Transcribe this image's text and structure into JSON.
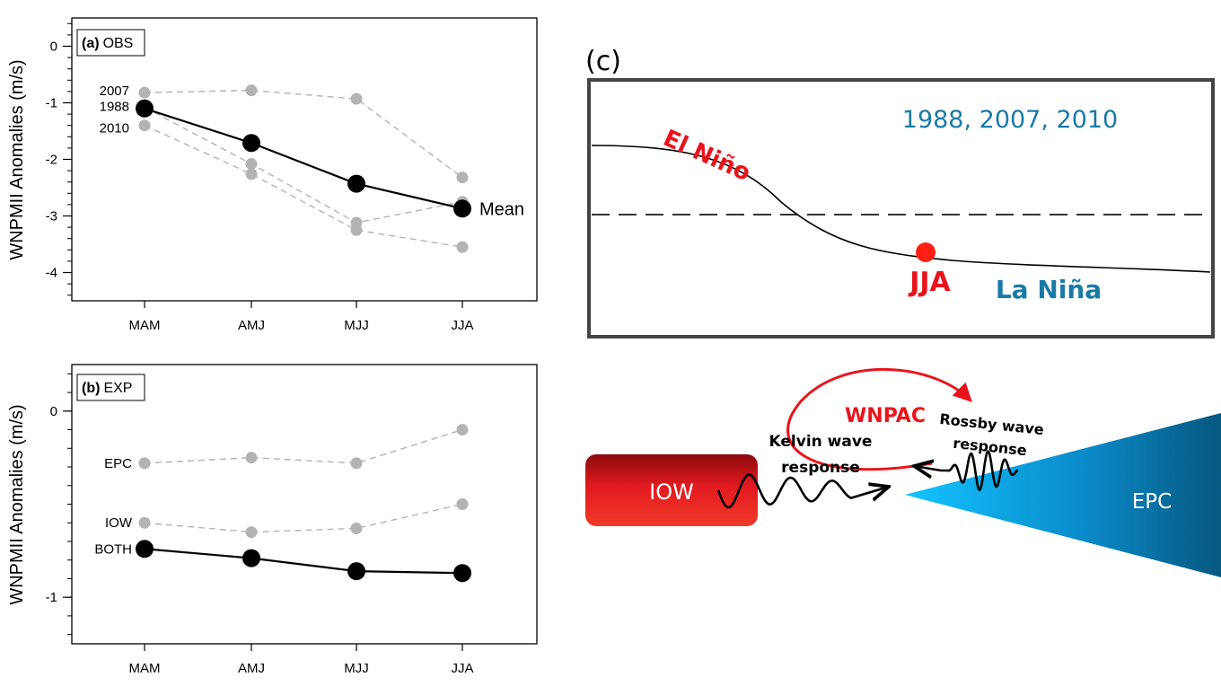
{
  "chart_data": [
    {
      "id": "a",
      "type": "line",
      "panel_tag": "(a)",
      "panel_name": "OBS",
      "ylabel": "WNPMII Anomalies (m/s)",
      "categories": [
        "MAM",
        "AMJ",
        "MJJ",
        "JJA"
      ],
      "ylim": [
        -4.5,
        0.5
      ],
      "yticks": [
        0,
        -1,
        -2,
        -3,
        -4
      ],
      "series": [
        {
          "name": "2007",
          "style": "gray-dashed",
          "values": [
            -0.82,
            -0.78,
            -0.93,
            -2.32
          ]
        },
        {
          "name": "1988",
          "style": "gray-dashed",
          "values": [
            -1.08,
            -2.08,
            -3.12,
            -2.75
          ]
        },
        {
          "name": "2010",
          "style": "gray-dashed",
          "values": [
            -1.4,
            -2.26,
            -3.25,
            -3.55
          ]
        },
        {
          "name": "Mean",
          "style": "black-solid",
          "values": [
            -1.1,
            -1.71,
            -2.43,
            -2.87
          ]
        }
      ],
      "left_labels": [
        "2007",
        "1988",
        "2010"
      ],
      "right_label": "Mean"
    },
    {
      "id": "b",
      "type": "line",
      "panel_tag": "(b)",
      "panel_name": "EXP",
      "ylabel": "WNPMII Anomalies (m/s)",
      "categories": [
        "MAM",
        "AMJ",
        "MJJ",
        "JJA"
      ],
      "ylim": [
        -1.25,
        0.25
      ],
      "yticks": [
        0,
        -1
      ],
      "series": [
        {
          "name": "EPC",
          "style": "gray-dashed",
          "values": [
            -0.28,
            -0.25,
            -0.28,
            -0.1
          ]
        },
        {
          "name": "IOW",
          "style": "gray-dashed",
          "values": [
            -0.6,
            -0.65,
            -0.63,
            -0.5
          ]
        },
        {
          "name": "BOTH",
          "style": "black-solid",
          "values": [
            -0.74,
            -0.79,
            -0.86,
            -0.87
          ]
        }
      ],
      "left_labels": [
        "EPC",
        "IOW",
        "BOTH"
      ]
    }
  ],
  "schematic_c": {
    "label": "(c)",
    "years": "1988, 2007, 2010",
    "el_nino": "El Niño",
    "la_nina": "La Niña",
    "season": "JJA"
  },
  "schematic_d": {
    "iow": "IOW",
    "epc": "EPC",
    "wnpac": "WNPAC",
    "kelvin": [
      "Kelvin wave",
      "response"
    ],
    "rossby": [
      "Rossby wave",
      "response"
    ]
  },
  "colors": {
    "red": "#e8141c",
    "blue": "#1a7aa6",
    "gray": "#b3b3b3",
    "frame": "#444444"
  }
}
